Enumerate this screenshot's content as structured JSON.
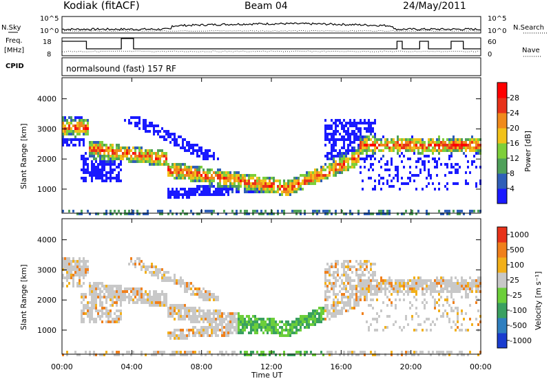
{
  "header": {
    "station": "Kodiak (fitACF)",
    "beam": "Beam 04",
    "date": "24/May/2011"
  },
  "chart_data": [
    {
      "type": "line",
      "panel": "noise",
      "left_label": "N.Sky",
      "right_label": "N.Search",
      "left_ticks": [
        "10^5",
        "10^0"
      ],
      "right_ticks": [
        "10^5",
        "10^0"
      ]
    },
    {
      "type": "line",
      "panel": "frequency",
      "left_label_1": "Freq.",
      "left_label_2": "[MHz]",
      "right_label": "Nave",
      "left_ticks": [
        "18",
        "8"
      ],
      "right_ticks": [
        "60",
        "0"
      ]
    },
    {
      "type": "table",
      "panel": "cpid",
      "label": "CPID",
      "text": "normalsound (fast) 157 RF"
    },
    {
      "type": "heatmap",
      "panel": "power",
      "ylabel": "Slant Range [km]",
      "yticks": [
        "1000",
        "2000",
        "3000",
        "4000"
      ],
      "ylim": [
        200,
        4700
      ],
      "colorbar_label": "Power [dB]",
      "colorbar_ticks": [
        "4",
        "8",
        "12",
        "16",
        "20",
        "24",
        "28"
      ],
      "colors": [
        "#1a1aff",
        "#2f5fb8",
        "#4fa05a",
        "#7ecf3a",
        "#f2c21a",
        "#f08a1c",
        "#e8321a",
        "#ff0000"
      ]
    },
    {
      "type": "heatmap",
      "panel": "velocity",
      "ylabel": "Slant Range [km]",
      "yticks": [
        "1000",
        "2000",
        "3000",
        "4000"
      ],
      "ylim": [
        200,
        4700
      ],
      "colorbar_label": "Velocity [m s⁻¹]",
      "colorbar_ticks": [
        "1000",
        "500",
        "100",
        "25",
        "-25",
        "-100",
        "-500",
        "-1000"
      ],
      "colors": [
        "#1a3ccf",
        "#2f7fbf",
        "#3aa060",
        "#6ccf3a",
        "#c8c8c8",
        "#f2b01a",
        "#f0801c",
        "#e8321a"
      ]
    }
  ],
  "xaxis": {
    "ticks": [
      "00:00",
      "04:00",
      "08:00",
      "12:00",
      "16:00",
      "20:00",
      "00:00"
    ],
    "label": "Time UT"
  }
}
